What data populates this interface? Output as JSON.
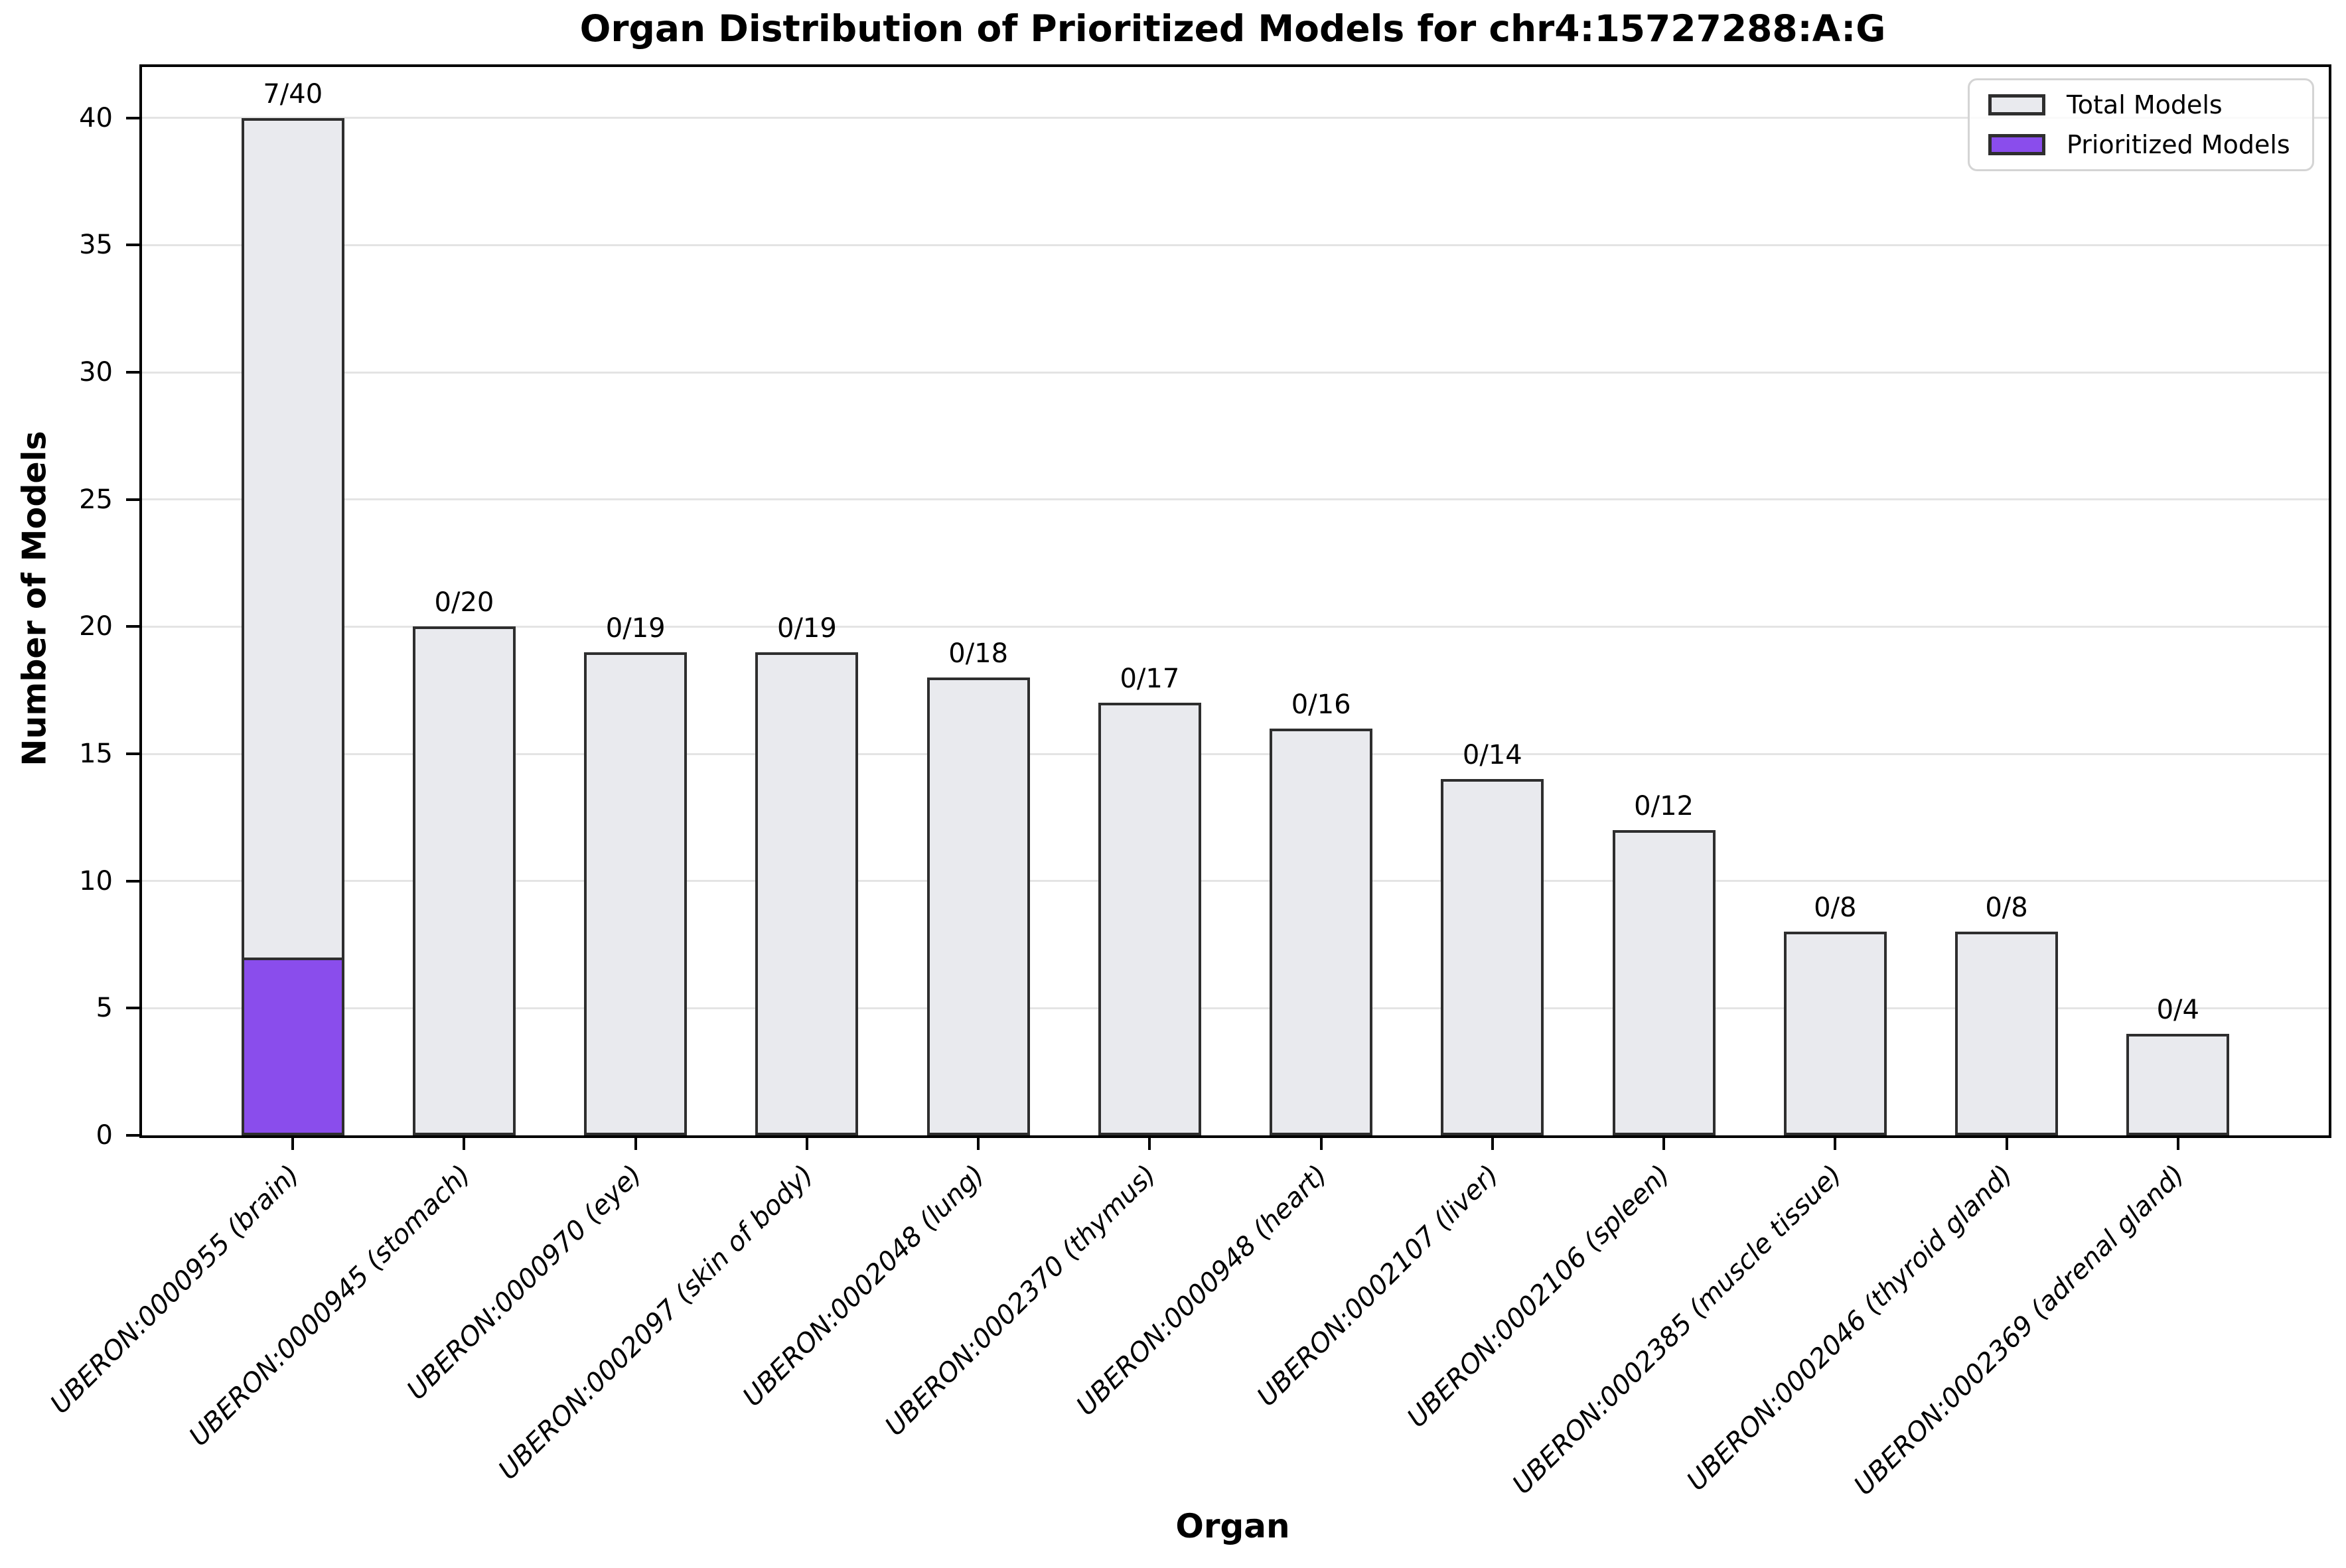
{
  "chart_data": {
    "type": "bar",
    "title": "Organ Distribution of Prioritized Models for chr4:15727288:A:G",
    "xlabel": "Organ",
    "ylabel": "Number of Models",
    "ylim": [
      0,
      42
    ],
    "yticks": [
      0,
      5,
      10,
      15,
      20,
      25,
      30,
      35,
      40
    ],
    "grid": "horizontal",
    "legend": {
      "position": "upper right",
      "entries": [
        {
          "label": "Total Models",
          "color": "#e9eaee"
        },
        {
          "label": "Prioritized Models",
          "color": "#8a4dec"
        }
      ]
    },
    "categories": [
      "UBERON:0000955 (brain)",
      "UBERON:0000945 (stomach)",
      "UBERON:0000970 (eye)",
      "UBERON:0002097 (skin of body)",
      "UBERON:0002048 (lung)",
      "UBERON:0002370 (thymus)",
      "UBERON:0000948 (heart)",
      "UBERON:0002107 (liver)",
      "UBERON:0002106 (spleen)",
      "UBERON:0002385 (muscle tissue)",
      "UBERON:0002046 (thyroid gland)",
      "UBERON:0002369 (adrenal gland)"
    ],
    "series": [
      {
        "name": "Total Models",
        "color": "#e9eaee",
        "values": [
          40,
          20,
          19,
          19,
          18,
          17,
          16,
          14,
          12,
          8,
          8,
          4
        ]
      },
      {
        "name": "Prioritized Models",
        "color": "#8a4dec",
        "values": [
          7,
          0,
          0,
          0,
          0,
          0,
          0,
          0,
          0,
          0,
          0,
          0
        ]
      }
    ],
    "bar_labels": [
      "7/40",
      "0/20",
      "0/19",
      "0/19",
      "0/18",
      "0/17",
      "0/16",
      "0/14",
      "0/12",
      "0/8",
      "0/8",
      "0/4"
    ]
  },
  "colors": {
    "total_fill": "#e9eaee",
    "prioritized_fill": "#8a4dec",
    "bar_edge": "#2e2e2e",
    "grid_line": "#e4e4e4",
    "spine": "#000000",
    "legend_border": "#d4d4d4"
  }
}
